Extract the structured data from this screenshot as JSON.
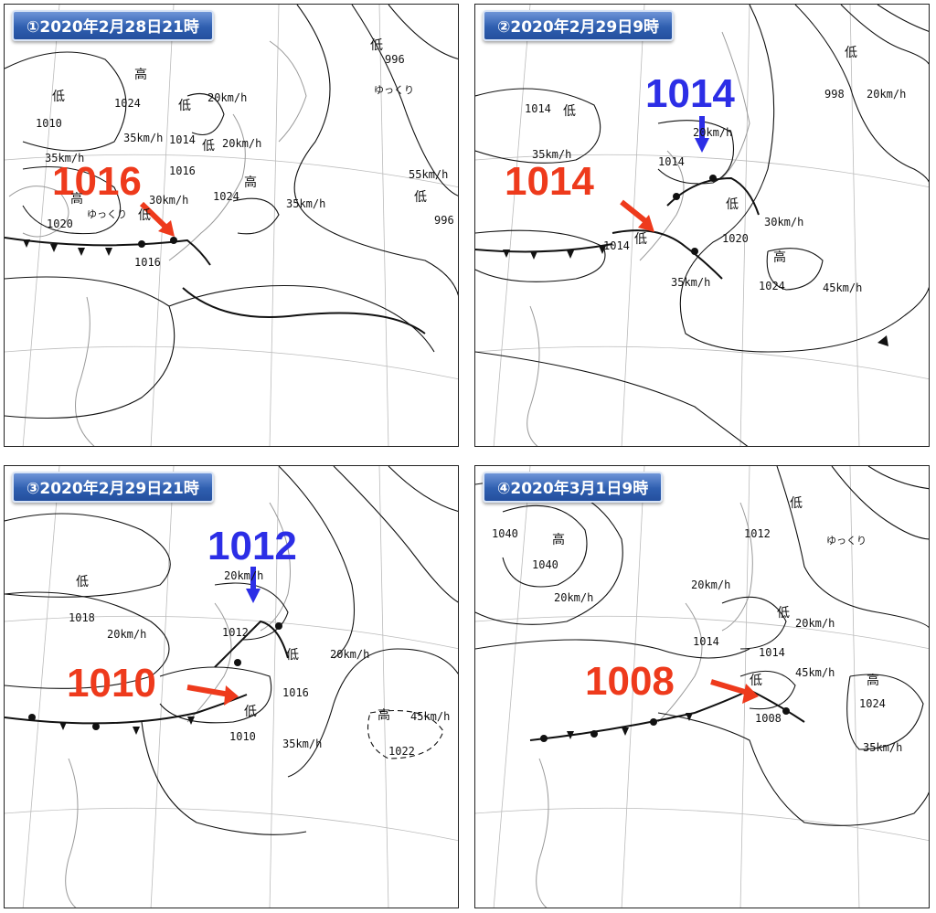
{
  "colors": {
    "highlight_red": "#ee3a1c",
    "highlight_blue": "#2c2ee6",
    "title_bg": "#2f5fb0"
  },
  "panels": [
    {
      "title": "①2020年2月28日21時",
      "highlights": [
        {
          "value": "1016",
          "color": "red"
        }
      ],
      "lows": [
        {
          "mark": "低",
          "pressure": "1010"
        },
        {
          "mark": "低",
          "pressure": "1014"
        },
        {
          "mark": "低",
          "pressure": "1016"
        },
        {
          "mark": "低",
          "pressure": "996"
        },
        {
          "mark": "低",
          "pressure": "996"
        },
        {
          "mark": "低",
          "pressure": "1016"
        }
      ],
      "highs": [
        {
          "mark": "高",
          "pressure": "1024"
        },
        {
          "mark": "高",
          "pressure": "1020"
        },
        {
          "mark": "高",
          "pressure": "1024"
        }
      ],
      "speeds": [
        "35km/h",
        "20km/h",
        "20km/h",
        "35km/h",
        "55km/h",
        "35km/h",
        "30km/h"
      ],
      "slow": [
        "ゆっくり",
        "ゆっくり"
      ]
    },
    {
      "title": "②2020年2月29日9時",
      "highlights": [
        {
          "value": "1014",
          "color": "blue"
        },
        {
          "value": "1014",
          "color": "red"
        }
      ],
      "lows": [
        {
          "mark": "低",
          "pressure": "1014"
        },
        {
          "mark": "低",
          "pressure": "998"
        },
        {
          "mark": "低",
          "pressure": "1014"
        },
        {
          "mark": "低",
          "pressure": "1014"
        },
        {
          "mark": "低",
          "pressure": "1020"
        }
      ],
      "highs": [
        {
          "mark": "高",
          "pressure": "1024"
        }
      ],
      "speeds": [
        "20km/h",
        "35km/h",
        "20km/h",
        "35km/h",
        "30km/h",
        "45km/h"
      ]
    },
    {
      "title": "③2020年2月29日21時",
      "highlights": [
        {
          "value": "1012",
          "color": "blue"
        },
        {
          "value": "1010",
          "color": "red"
        }
      ],
      "lows": [
        {
          "mark": "低",
          "pressure": "1018"
        },
        {
          "mark": "低",
          "pressure": "1012"
        },
        {
          "mark": "低",
          "pressure": "1016"
        },
        {
          "mark": "低",
          "pressure": "1010"
        }
      ],
      "highs": [
        {
          "mark": "高",
          "pressure": "1022"
        }
      ],
      "speeds": [
        "20km/h",
        "20km/h",
        "20km/h",
        "35km/h",
        "45km/h"
      ]
    },
    {
      "title": "④2020年3月1日9時",
      "highlights": [
        {
          "value": "1008",
          "color": "red"
        }
      ],
      "lows": [
        {
          "mark": "低",
          "pressure": "1012"
        },
        {
          "mark": "低",
          "pressure": "1014"
        },
        {
          "mark": "低",
          "pressure": "1014"
        },
        {
          "mark": "低",
          "pressure": "1008"
        }
      ],
      "highs": [
        {
          "mark": "高",
          "pressure": "1040"
        },
        {
          "mark": "高",
          "pressure": "1024"
        }
      ],
      "extra_pressures": [
        "1040"
      ],
      "speeds": [
        "20km/h",
        "20km/h",
        "20km/h",
        "45km/h",
        "35km/h"
      ],
      "slow": [
        "ゆっくり"
      ]
    }
  ]
}
